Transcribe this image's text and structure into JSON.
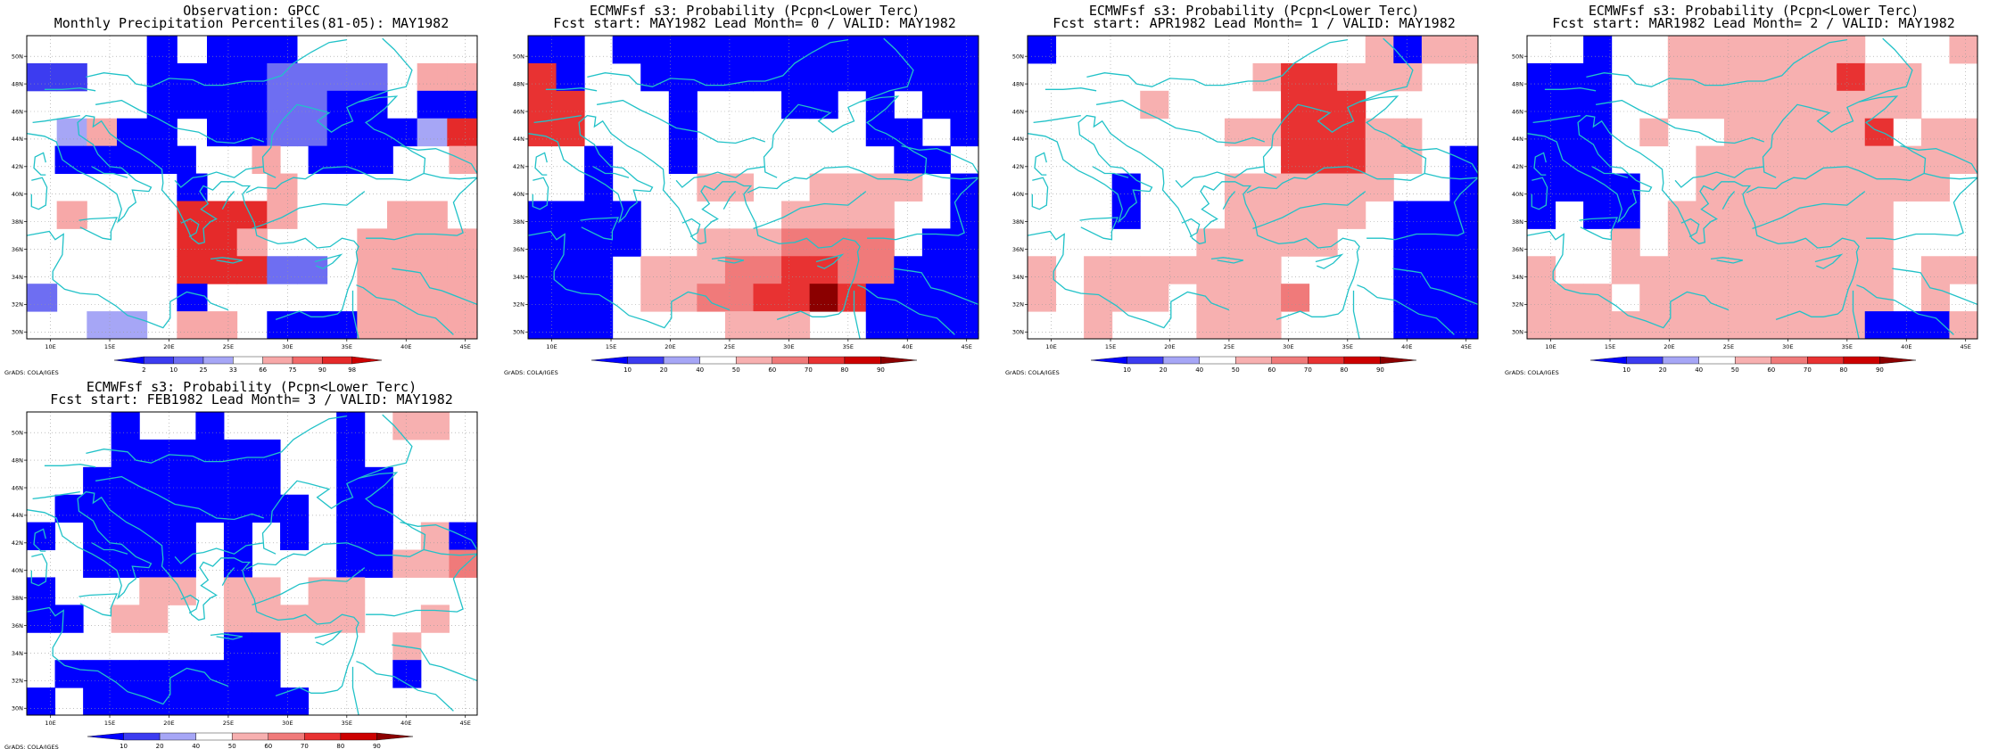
{
  "panels": [
    {
      "id": "gpcc",
      "title_line1": "Observation: GPCC",
      "title_line2": "Monthly Precipitation Percentiles(81-05): MAY1982",
      "colorbar_labels": [
        "2",
        "10",
        "25",
        "33",
        "66",
        "75",
        "90",
        "98"
      ],
      "colorbar_colors": [
        "#0000ff",
        "#3c3cf0",
        "#6e6ef2",
        "#a6a6f6",
        "#ffffff",
        "#f7a8a8",
        "#f26a6a",
        "#e52a2a",
        "#cc0000"
      ],
      "credit": "GrADS: COLA/IGES",
      "grid": [
        "WWWWXWXXXWWWWWW",
        "ZZWWXXXXYYYYWRR",
        "WWWWXXXXYYXXWXX",
        "WQRXXWXXYYXXXQT",
        "WXXXXXWWRWXXXWWR",
        "WWWWWXWWRWWWWWW",
        "WRWWWTTTRWWWRRW",
        "WWWWWTTRWWWRRRR",
        "WWWWWTTTYYWRRRR",
        "YWWWWXWWWWWRRRR",
        "WWSSWRRWXXXRRRR"
      ]
    },
    {
      "id": "lead0",
      "title_line1": "ECMWFsf s3: Probability (Pcpn<Lower Terc)",
      "title_line2": "Fcst start: MAY1982  Lead Month= 0 / VALID: MAY1982",
      "colorbar_labels": [
        "10",
        "20",
        "40",
        "50",
        "60",
        "70",
        "80",
        "90"
      ],
      "colorbar_colors": [
        "#0000ff",
        "#3c3cf0",
        "#a6a6f6",
        "#ffffff",
        "#f7b0b0",
        "#f07a7a",
        "#e83232",
        "#cc0000",
        "#8b0000"
      ],
      "credit": "GrADS: COLA/IGES",
      "grid": [
        "XXWXXXXXXXXXXXXX",
        "RXWWXXXXXXXXXXXX",
        "RRWWWXWWWXXWXWXX",
        "RRWWWXWWWWWWXXWX",
        "WWXWWXWWWWWWWXXW",
        "WWXWWWLLWWLLLLWX",
        "XXXXWWWWWLLLLWWX",
        "XXXXWWLLLMMMMWXX",
        "XXXWLLLMMRRMMXXX",
        "XXXWLLMMRRDRXXXX",
        "XXXWWWWLLLWWXXXX"
      ]
    },
    {
      "id": "lead1",
      "title_line1": "ECMWFsf s3: Probability (Pcpn<Lower Terc)",
      "title_line2": "Fcst start: APR1982  Lead Month= 1 / VALID: MAY1982",
      "colorbar_labels": [
        "10",
        "20",
        "40",
        "50",
        "60",
        "70",
        "80",
        "90"
      ],
      "colorbar_colors": [
        "#0000ff",
        "#3c3cf0",
        "#a6a6f6",
        "#ffffff",
        "#f7b0b0",
        "#f07a7a",
        "#e83232",
        "#cc0000",
        "#8b0000"
      ],
      "credit": "GrADS: COLA/IGES",
      "grid": [
        "XWWWWWWWWWWWLXLL",
        "WWWWWWWWLRRLLLWW",
        "WWWWLWWWWRRRWWWW",
        "WWWWWWWLLRRRLLWW",
        "WWWWWWWWWRRRLLWX",
        "WWWXWWWLLLLLLWWX",
        "WWWXWWWLLLLLWXXX",
        "WWWWWWLLLLLWWXXX",
        "LWLLLLLLLWWWWXXX",
        "LWLLLWLLLMWWWXXX",
        "WWLWWWLLLWWWWXXX"
      ]
    },
    {
      "id": "lead2",
      "title_line1": "ECMWFsf s3: Probability (Pcpn<Lower Terc)",
      "title_line2": "Fcst start: MAR1982  Lead Month= 2 / VALID: MAY1982",
      "colorbar_labels": [
        "10",
        "20",
        "40",
        "50",
        "60",
        "70",
        "80",
        "90"
      ],
      "colorbar_colors": [
        "#0000ff",
        "#3c3cf0",
        "#a6a6f6",
        "#ffffff",
        "#f7b0b0",
        "#f07a7a",
        "#e83232",
        "#cc0000",
        "#8b0000"
      ],
      "credit": "GrADS: COLA/IGES",
      "grid": [
        "WWXWWLLLLLLLWWWL",
        "XXXWWLLLLLLRLLWW",
        "XXXWWLLLLLLLLLWW",
        "XXXWLWWLLLLLRWLL",
        "XXXWWWLLLLLLLLLL",
        "XXXXWWLLLLLLLLLW",
        "XWXXWLLLLLLLLWWW",
        "WWWLWLLLLLLLLWWW",
        "LWWLLLLLLLLLLWLL",
        "LLLWLLLLLLLLLWLW",
        "LLLLLLLLLLLLXXXL"
      ]
    },
    {
      "id": "lead3",
      "title_line1": "ECMWFsf s3: Probability (Pcpn<Lower Terc)",
      "title_line2": "Fcst start: FEB1982  Lead Month= 3 / VALID: MAY1982",
      "colorbar_labels": [
        "10",
        "20",
        "40",
        "50",
        "60",
        "70",
        "80",
        "90"
      ],
      "colorbar_colors": [
        "#0000ff",
        "#3c3cf0",
        "#a6a6f6",
        "#ffffff",
        "#f7b0b0",
        "#f07a7a",
        "#e83232",
        "#cc0000",
        "#8b0000"
      ],
      "credit": "GrADS: COLA/IGES",
      "grid": [
        "WWWXWWXWWWWXWLLW",
        "WWWXXXXXXWWXWWWW",
        "WWXXXXXXXWWXXWWW",
        "WXXXXXXXXXWXXWWW",
        "XWXXXXWXWXWXXWLX",
        "WWXXXXWXWWWXXLLM",
        "XWWWLLWLLWLLWWWW",
        "XXWLLWWLLLLLWWLW",
        "WWWWWWWXXWWWWLWW",
        "WXXXXXXXXWWWWXWW",
        "XWXXXXXXXXWWWWWW"
      ]
    }
  ],
  "map": {
    "lon_labels": [
      "10E",
      "15E",
      "20E",
      "25E",
      "30E",
      "35E",
      "40E",
      "45E"
    ],
    "lat_labels": [
      "50N",
      "48N",
      "46N",
      "44N",
      "42N",
      "40N",
      "38N",
      "36N",
      "34N",
      "32N",
      "30N"
    ],
    "lon_range": [
      8,
      46
    ],
    "lat_range": [
      29.5,
      51.5
    ],
    "coast_color": "#22c2c8",
    "grid_line_color": "#999999"
  }
}
